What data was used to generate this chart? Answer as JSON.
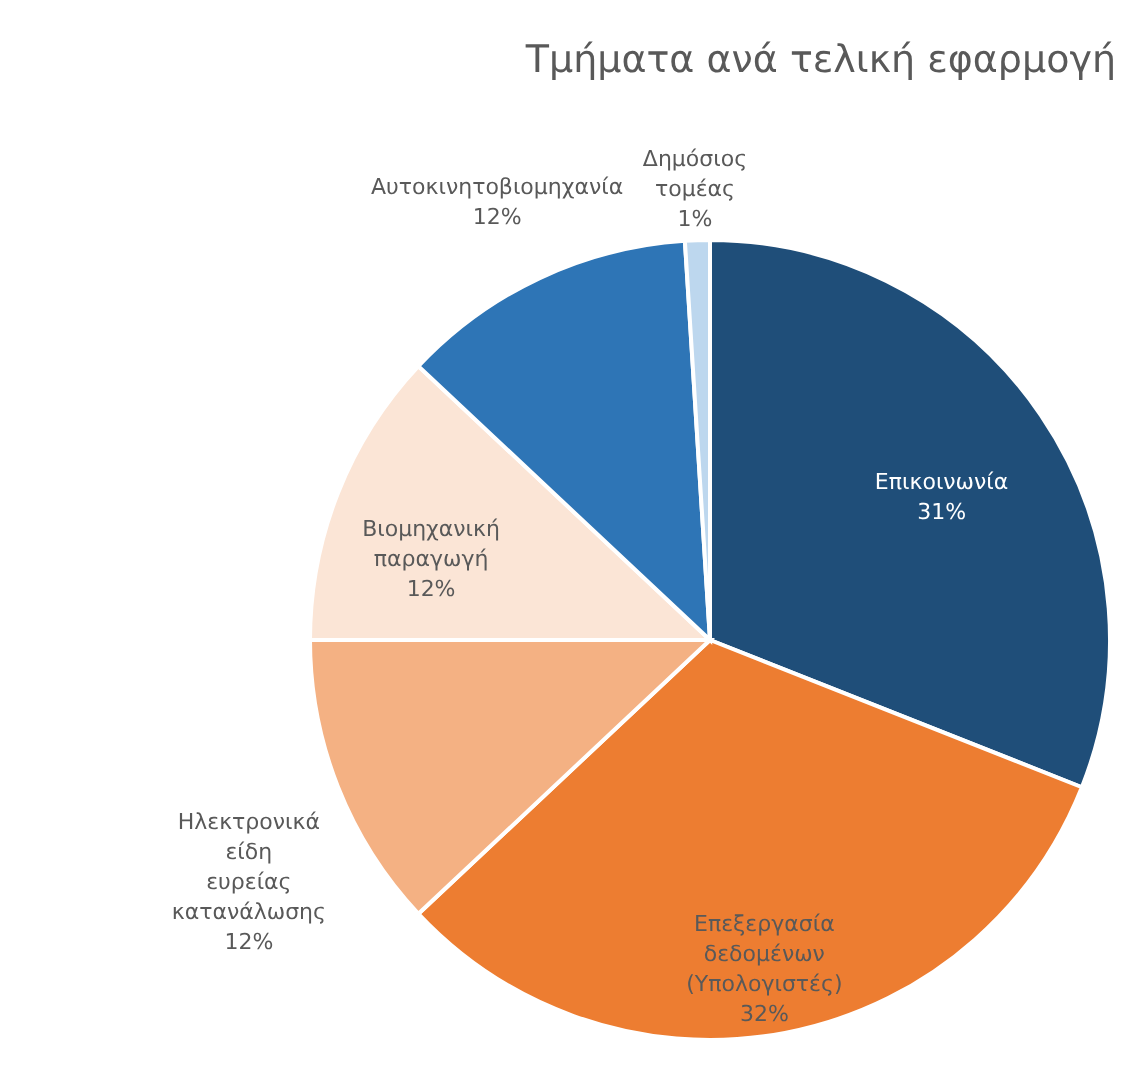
{
  "chart_data": {
    "type": "pie",
    "title": "Τμήματα ανά τελική εφαρμογή",
    "categories": [
      "Επικοινωνία",
      "Επεξεργασία δεδομένων (Υπολογιστές)",
      "Ηλεκτρονικά είδη ευρείας κατανάλωσης",
      "Βιομηχανική παραγωγή",
      "Αυτοκινητοβιομηχανία",
      "Δημόσιος τομέας"
    ],
    "values": [
      31,
      32,
      12,
      12,
      12,
      1
    ],
    "colors": [
      "#1f4e79",
      "#ed7d31",
      "#f4b183",
      "#fbe5d6",
      "#2e75b6",
      "#bdd7ee"
    ],
    "value_labels": [
      "31%",
      "32%",
      "12%",
      "12%",
      "12%",
      "1%"
    ],
    "legend": false
  }
}
